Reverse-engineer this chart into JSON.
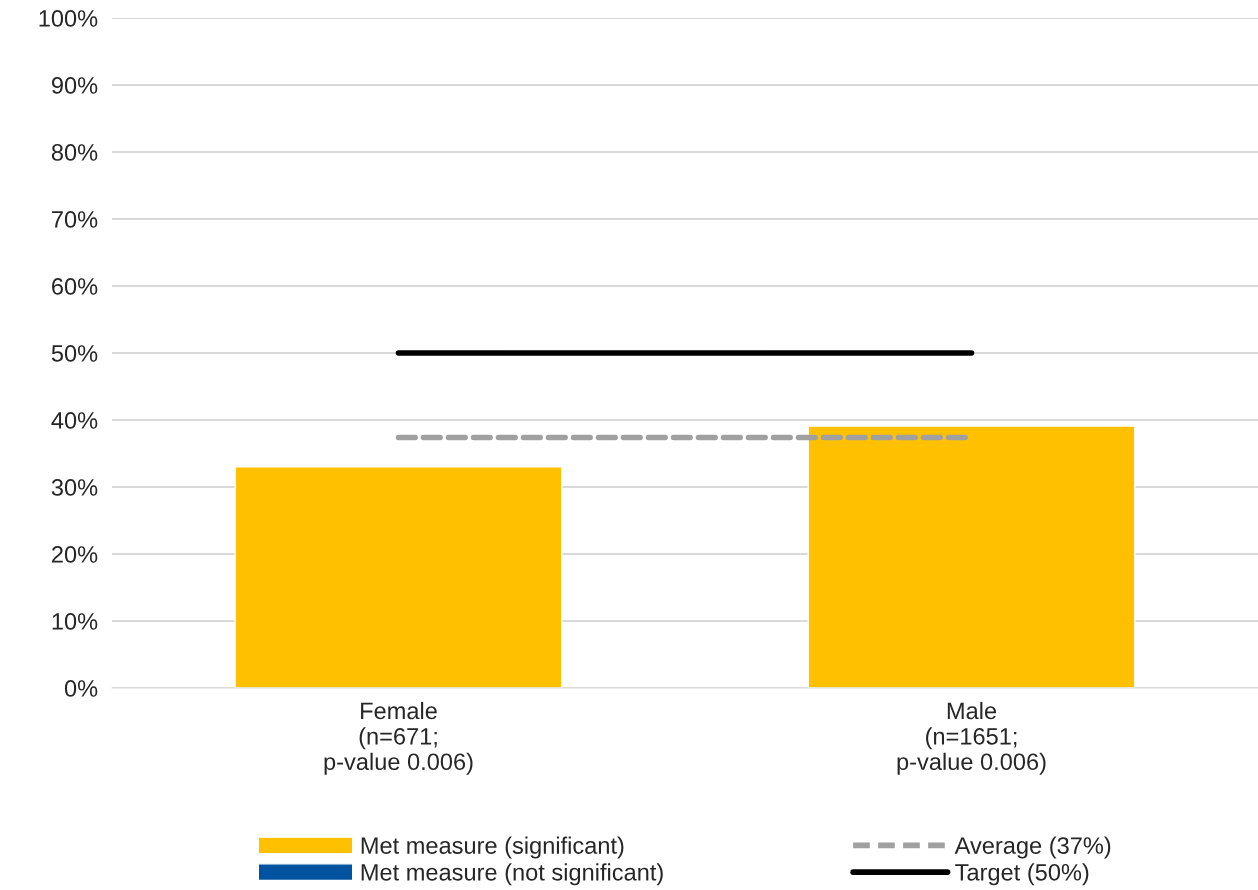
{
  "chart_data": {
    "type": "bar",
    "stacked": true,
    "categories": [
      "Female\n(n=671;\np-value 0.006)",
      "Male\n(n=1651;\np-value 0.006)"
    ],
    "series": [
      {
        "name": "Met measure (significant)",
        "color": "#ffc000",
        "values": [
          33,
          39.1
        ]
      },
      {
        "name": "Met measure (not significant)",
        "color": "#00549f",
        "values": [
          null,
          null
        ]
      },
      {
        "name": "Average (37%)",
        "type": "line",
        "line_style": "dashed",
        "color": "#a0a0a0",
        "values": [
          37.4,
          37.4
        ]
      },
      {
        "name": "Target (50%)",
        "type": "line",
        "line_style": "solid",
        "color": "#000000",
        "values": [
          50,
          50
        ]
      }
    ],
    "ylim": [
      0,
      100
    ],
    "yticks": [
      {
        "value": 0,
        "label": "0%"
      },
      {
        "value": 10,
        "label": "10%"
      },
      {
        "value": 20,
        "label": "20%"
      },
      {
        "value": 30,
        "label": "30%"
      },
      {
        "value": 40,
        "label": "40%"
      },
      {
        "value": 50,
        "label": "50%"
      },
      {
        "value": 60,
        "label": "60%"
      },
      {
        "value": 70,
        "label": "70%"
      },
      {
        "value": 80,
        "label": "80%"
      },
      {
        "value": 90,
        "label": "90%"
      },
      {
        "value": 100,
        "label": "100%"
      }
    ],
    "grid": "y",
    "legend": "bottom"
  }
}
